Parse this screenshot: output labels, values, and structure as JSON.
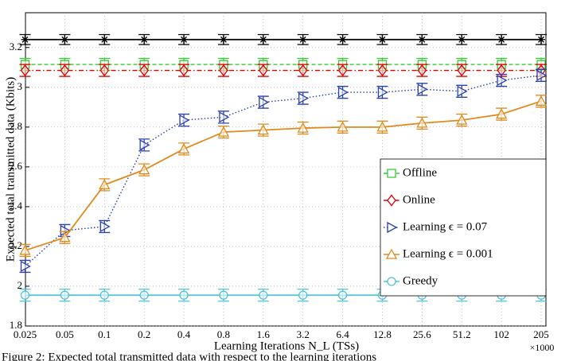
{
  "chart_data": {
    "type": "line",
    "xlabel": "Learning Iterations N_L (TSs)",
    "ylabel": "Expected total transmitted data (Kbits)",
    "x_multiplier": "×1000",
    "caption": "Figure 2: Expected total transmitted data with respect to the learning iterations",
    "categories": [
      "0.025",
      "0.05",
      "0.1",
      "0.2",
      "0.4",
      "0.8",
      "1.6",
      "3.2",
      "6.4",
      "12.8",
      "25.6",
      "51.2",
      "102",
      "205"
    ],
    "ylim": [
      1.8,
      3.375
    ],
    "yticks": [
      1.8,
      2,
      2.2,
      2.4,
      2.6,
      2.8,
      3,
      3.2
    ],
    "grid": true,
    "legend": "lower right",
    "series": [
      {
        "color": "#000000",
        "marker": "asterisk",
        "linestyle": "solid",
        "values": [
          3.24,
          3.24,
          3.24,
          3.24,
          3.24,
          3.24,
          3.24,
          3.24,
          3.24,
          3.24,
          3.24,
          3.24,
          3.24,
          3.24
        ],
        "errors": [
          0.025,
          0.025,
          0.025,
          0.025,
          0.025,
          0.025,
          0.025,
          0.025,
          0.025,
          0.025,
          0.025,
          0.025,
          0.025,
          0.025
        ]
      },
      {
        "name": "Offline",
        "color": "#33cc33",
        "marker": "square",
        "linestyle": "dashed",
        "values": [
          3.115,
          3.115,
          3.115,
          3.115,
          3.115,
          3.115,
          3.115,
          3.115,
          3.115,
          3.115,
          3.115,
          3.115,
          3.115,
          3.115
        ],
        "errors": [
          0.03,
          0.03,
          0.03,
          0.03,
          0.03,
          0.03,
          0.03,
          0.03,
          0.03,
          0.03,
          0.03,
          0.03,
          0.03,
          0.03
        ]
      },
      {
        "name": "Online",
        "color": "#e00000",
        "marker": "diamond",
        "linestyle": "dashdot",
        "values": [
          3.085,
          3.085,
          3.085,
          3.085,
          3.085,
          3.085,
          3.085,
          3.085,
          3.085,
          3.085,
          3.085,
          3.085,
          3.085,
          3.085
        ],
        "errors": [
          0.03,
          0.03,
          0.03,
          0.03,
          0.03,
          0.03,
          0.03,
          0.03,
          0.03,
          0.03,
          0.03,
          0.03,
          0.03,
          0.03
        ]
      },
      {
        "name": "Learning ϵ = 0.07",
        "color": "#2a3fae",
        "marker": "triangle-right",
        "linestyle": "dotted",
        "values": [
          2.1,
          2.28,
          2.3,
          2.71,
          2.835,
          2.85,
          2.925,
          2.945,
          2.975,
          2.975,
          2.99,
          2.98,
          3.035,
          3.06
        ],
        "errors": [
          0.03,
          0.03,
          0.03,
          0.03,
          0.03,
          0.03,
          0.03,
          0.03,
          0.03,
          0.03,
          0.03,
          0.03,
          0.03,
          0.03
        ]
      },
      {
        "name": "Learning ϵ = 0.001",
        "color": "#e08a1e",
        "marker": "triangle-up",
        "linestyle": "solid",
        "values": [
          2.18,
          2.245,
          2.51,
          2.585,
          2.69,
          2.775,
          2.785,
          2.795,
          2.8,
          2.8,
          2.82,
          2.835,
          2.865,
          2.93
        ],
        "errors": [
          0.03,
          0.03,
          0.03,
          0.03,
          0.03,
          0.03,
          0.03,
          0.03,
          0.03,
          0.03,
          0.03,
          0.03,
          0.03,
          0.03
        ]
      },
      {
        "name": "Greedy",
        "color": "#4fc3d6",
        "marker": "circle",
        "linestyle": "solid",
        "values": [
          1.955,
          1.955,
          1.955,
          1.955,
          1.955,
          1.955,
          1.955,
          1.955,
          1.955,
          1.955,
          1.955,
          1.955,
          1.955,
          1.955
        ],
        "errors": [
          0.03,
          0.03,
          0.03,
          0.03,
          0.03,
          0.03,
          0.03,
          0.03,
          0.03,
          0.03,
          0.03,
          0.03,
          0.03,
          0.03
        ]
      }
    ]
  }
}
